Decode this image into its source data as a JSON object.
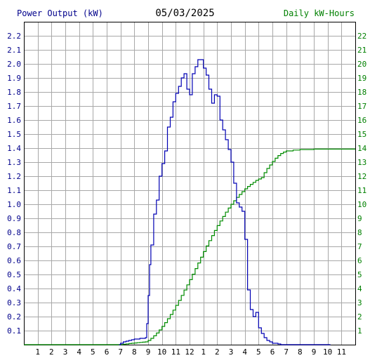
{
  "header": {
    "left_label": "Power Output (kW)",
    "title": "05/03/2025",
    "right_label": "Daily kW-Hours"
  },
  "colors": {
    "power": "#0000b4",
    "energy": "#008c00",
    "grid": "#a8a8a8",
    "axis": "#000000",
    "left_axis_text": "#00008b",
    "right_axis_text": "#008000"
  },
  "chart_data": {
    "type": "line",
    "title": "05/03/2025",
    "ylabel": "Power Output (kW)",
    "y2label": "Daily kW-Hours",
    "xlabel": "",
    "grid": true,
    "x_range_hours": [
      0,
      24
    ],
    "ylim": [
      0,
      2.3
    ],
    "y2lim": [
      0,
      23
    ],
    "x_ticks": [
      "1",
      "2",
      "3",
      "4",
      "5",
      "6",
      "7",
      "8",
      "9",
      "10",
      "11",
      "12",
      "1",
      "2",
      "3",
      "4",
      "5",
      "6",
      "7",
      "8",
      "9",
      "10",
      "11"
    ],
    "y_ticks": [
      "0.1",
      "0.2",
      "0.3",
      "0.4",
      "0.5",
      "0.6",
      "0.7",
      "0.8",
      "0.9",
      "1.0",
      "1.1",
      "1.2",
      "1.3",
      "1.4",
      "1.5",
      "1.6",
      "1.7",
      "1.8",
      "1.9",
      "2.0",
      "2.1",
      "2.2"
    ],
    "y2_ticks": [
      "1",
      "2",
      "3",
      "4",
      "5",
      "6",
      "7",
      "8",
      "9",
      "10",
      "11",
      "12",
      "13",
      "14",
      "15",
      "16",
      "17",
      "18",
      "19",
      "20",
      "21",
      "22"
    ],
    "series": [
      {
        "name": "Power Output (kW)",
        "x": [
          6.9,
          7.0,
          7.2,
          7.4,
          7.6,
          7.8,
          8.0,
          8.2,
          8.4,
          8.6,
          8.8,
          8.9,
          9.0,
          9.1,
          9.2,
          9.4,
          9.6,
          9.8,
          10.0,
          10.2,
          10.4,
          10.6,
          10.8,
          11.0,
          11.2,
          11.4,
          11.6,
          11.8,
          12.0,
          12.2,
          12.4,
          12.6,
          12.8,
          13.0,
          13.2,
          13.4,
          13.6,
          13.8,
          14.0,
          14.2,
          14.4,
          14.6,
          14.8,
          15.0,
          15.2,
          15.4,
          15.6,
          15.8,
          16.0,
          16.2,
          16.4,
          16.6,
          16.8,
          17.0,
          17.2,
          17.4,
          17.6,
          17.8,
          18.0,
          18.2,
          18.4,
          18.6,
          18.8,
          19.0,
          19.2,
          19.4,
          19.6,
          19.8,
          20.0,
          20.2,
          20.4,
          20.6,
          20.8,
          21.0,
          21.2,
          21.4,
          21.6,
          21.8,
          22.0,
          22.2
        ],
        "y": [
          0.0,
          0.01,
          0.02,
          0.025,
          0.03,
          0.035,
          0.04,
          0.04,
          0.045,
          0.045,
          0.05,
          0.15,
          0.35,
          0.57,
          0.71,
          0.93,
          1.03,
          1.2,
          1.29,
          1.38,
          1.55,
          1.62,
          1.73,
          1.79,
          1.84,
          1.9,
          1.93,
          1.82,
          1.78,
          1.93,
          1.98,
          2.03,
          2.03,
          1.97,
          1.92,
          1.82,
          1.72,
          1.78,
          1.77,
          1.6,
          1.53,
          1.46,
          1.39,
          1.3,
          1.15,
          1.01,
          0.98,
          0.95,
          0.75,
          0.39,
          0.25,
          0.2,
          0.23,
          0.12,
          0.08,
          0.05,
          0.03,
          0.02,
          0.01,
          0.01,
          0.005,
          0.0,
          0.0,
          0.0,
          0.0,
          0.0,
          0.0,
          0.0,
          0.0,
          0.0,
          0.0,
          0.0,
          0.0,
          0.0,
          0.0,
          0.0,
          0.0,
          0.0,
          0.0,
          0.0
        ]
      },
      {
        "name": "Daily kW-Hours",
        "x": [
          0,
          6.7,
          7.0,
          7.2,
          7.4,
          7.6,
          7.8,
          8.0,
          8.2,
          8.4,
          8.6,
          8.8,
          9.0,
          9.2,
          9.4,
          9.6,
          9.8,
          10.0,
          10.2,
          10.4,
          10.6,
          10.8,
          11.0,
          11.2,
          11.4,
          11.6,
          11.8,
          12.0,
          12.2,
          12.4,
          12.6,
          12.8,
          13.0,
          13.2,
          13.4,
          13.6,
          13.8,
          14.0,
          14.2,
          14.4,
          14.6,
          14.8,
          15.0,
          15.2,
          15.4,
          15.6,
          15.8,
          16.0,
          16.2,
          16.4,
          16.6,
          16.8,
          17.0,
          17.2,
          17.4,
          17.6,
          17.8,
          18.0,
          18.2,
          18.4,
          18.6,
          18.8,
          19.0,
          19.5,
          20.0,
          21.0,
          22.0,
          23.0,
          24.0
        ],
        "y": [
          0,
          0.0,
          0.01,
          0.03,
          0.05,
          0.08,
          0.1,
          0.12,
          0.14,
          0.16,
          0.18,
          0.2,
          0.3,
          0.45,
          0.63,
          0.83,
          1.05,
          1.3,
          1.57,
          1.85,
          2.15,
          2.46,
          2.8,
          3.15,
          3.51,
          3.89,
          4.26,
          4.63,
          5.02,
          5.42,
          5.82,
          6.23,
          6.63,
          7.03,
          7.41,
          7.77,
          8.13,
          8.48,
          8.81,
          9.13,
          9.44,
          9.73,
          10.0,
          10.25,
          10.49,
          10.7,
          10.9,
          11.1,
          11.27,
          11.42,
          11.56,
          11.7,
          11.8,
          11.9,
          12.25,
          12.55,
          12.8,
          13.05,
          13.28,
          13.47,
          13.62,
          13.72,
          13.8,
          13.86,
          13.9,
          13.93,
          13.93,
          13.93,
          13.93
        ]
      }
    ]
  }
}
